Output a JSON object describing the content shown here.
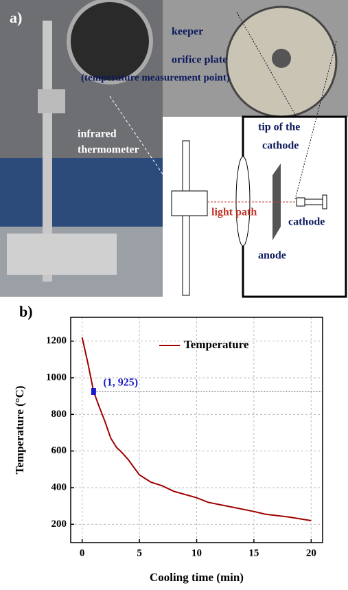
{
  "panel_a": {
    "label": "a)",
    "texts": [
      "keeper",
      "orifice plate",
      "(temperature measurement point)",
      "infrared",
      "thermometer",
      "tip of the",
      "cathode",
      "light path",
      "cathode",
      "anode"
    ]
  },
  "chart_data": {
    "type": "line",
    "label": "b)",
    "x_label": "Cooling time (min)",
    "y_label": "Temperature (°C)",
    "x": [
      0,
      0.5,
      1,
      1.5,
      2,
      2.5,
      3,
      3.5,
      4,
      5,
      6,
      7,
      8,
      10,
      11,
      13,
      15,
      16,
      18,
      20
    ],
    "series": [
      {
        "name": "Temperature",
        "color": "#a00000",
        "values": [
          1220,
          1080,
          925,
          840,
          760,
          670,
          620,
          590,
          555,
          470,
          430,
          410,
          380,
          345,
          320,
          295,
          270,
          255,
          240,
          220
        ]
      }
    ],
    "annotation": {
      "text": "(1, 925)",
      "x": 1,
      "y": 925,
      "color": "#1a1acc"
    },
    "xlim": [
      -1,
      21
    ],
    "ylim": [
      100,
      1330
    ],
    "xticks": [
      0,
      5,
      10,
      15,
      20
    ],
    "yticks": [
      200,
      400,
      600,
      800,
      1000,
      1200
    ],
    "grid": true,
    "legend": "upper right"
  }
}
